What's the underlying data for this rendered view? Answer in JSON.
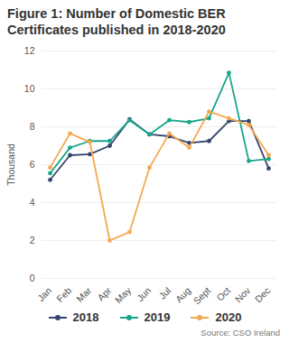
{
  "chart_data": {
    "type": "line",
    "title": "Figure 1: Number of Domestic BER Certificates published in 2018-2020",
    "y_label": "Thousand",
    "source": "Source: CSO Ireland",
    "categories": [
      "Jan",
      "Feb",
      "Mar",
      "Apr",
      "May",
      "Jun",
      "Jul",
      "Aug",
      "Sept",
      "Oct",
      "Nov",
      "Dec"
    ],
    "series": [
      {
        "name": "2018",
        "color": "#34466e",
        "marker": "circle",
        "values": [
          5.2,
          6.5,
          6.55,
          7.0,
          8.4,
          7.6,
          7.5,
          7.15,
          7.25,
          8.3,
          8.3,
          5.8
        ]
      },
      {
        "name": "2019",
        "color": "#17a68a",
        "marker": "circle",
        "values": [
          5.55,
          6.9,
          7.25,
          7.25,
          8.35,
          7.6,
          8.35,
          8.25,
          8.45,
          10.85,
          6.2,
          6.3
        ]
      },
      {
        "name": "2020",
        "color": "#f4a84e",
        "marker": "circle",
        "values": [
          5.85,
          7.65,
          7.2,
          2.0,
          2.45,
          5.85,
          7.65,
          6.9,
          8.8,
          8.45,
          8.1,
          6.5
        ]
      }
    ],
    "ylim": [
      0,
      12
    ],
    "yticks": [
      0,
      2,
      4,
      6,
      8,
      10,
      12
    ],
    "grid": true,
    "legend": "bottom"
  }
}
